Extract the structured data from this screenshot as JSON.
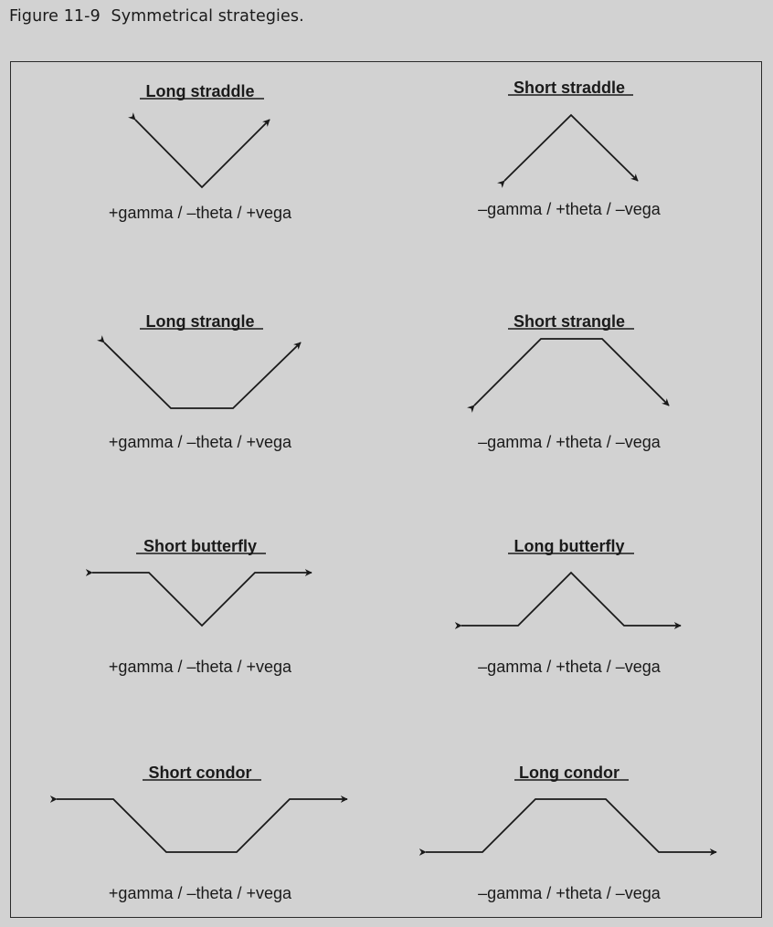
{
  "figure": {
    "number": "Figure 11-9",
    "title": "Symmetrical strategies."
  },
  "strategies": [
    {
      "name": "Long straddle",
      "greeks": "+gamma / –theta / +vega"
    },
    {
      "name": "Short straddle",
      "greeks": "–gamma / +theta / –vega"
    },
    {
      "name": "Long strangle",
      "greeks": "+gamma / –theta / +vega"
    },
    {
      "name": "Short strangle",
      "greeks": "–gamma / +theta / –vega"
    },
    {
      "name": "Short butterfly",
      "greeks": "+gamma / –theta / +vega"
    },
    {
      "name": "Long butterfly",
      "greeks": "–gamma / +theta / –vega"
    },
    {
      "name": "Short condor",
      "greeks": "+gamma / –theta / +vega"
    },
    {
      "name": "Long condor",
      "greeks": "–gamma / +theta / –vega"
    }
  ]
}
